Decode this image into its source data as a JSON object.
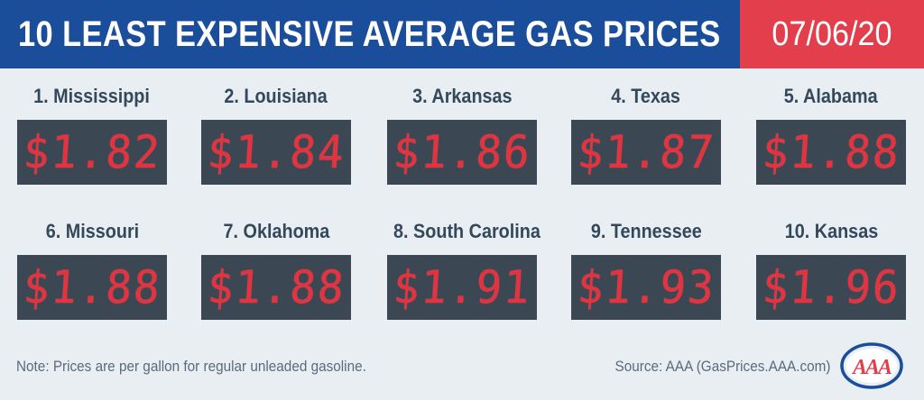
{
  "header": {
    "title": "10 LEAST EXPENSIVE AVERAGE GAS PRICES",
    "date": "07/06/20"
  },
  "tiles": [
    {
      "label": "1. Mississippi",
      "price": "$1.82"
    },
    {
      "label": "2. Louisiana",
      "price": "$1.84"
    },
    {
      "label": "3. Arkansas",
      "price": "$1.86"
    },
    {
      "label": "4. Texas",
      "price": "$1.87"
    },
    {
      "label": "5.  Alabama",
      "price": "$1.88"
    },
    {
      "label": "6. Missouri",
      "price": "$1.88"
    },
    {
      "label": "7. Oklahoma",
      "price": "$1.88"
    },
    {
      "label": "8. South Carolina",
      "price": "$1.91"
    },
    {
      "label": "9. Tennessee",
      "price": "$1.93"
    },
    {
      "label": "10. Kansas",
      "price": "$1.96"
    }
  ],
  "footer": {
    "note": "Note: Prices are per gallon for regular unleaded gasoline.",
    "source": "Source: AAA (GasPrices.AAA.com)",
    "logo_text": "AAA"
  },
  "colors": {
    "header_blue": "#1a4d9a",
    "date_red": "#e23e4b",
    "price_red": "#e5323f",
    "display_dark": "#3b4752",
    "background": "#e9eef3"
  }
}
